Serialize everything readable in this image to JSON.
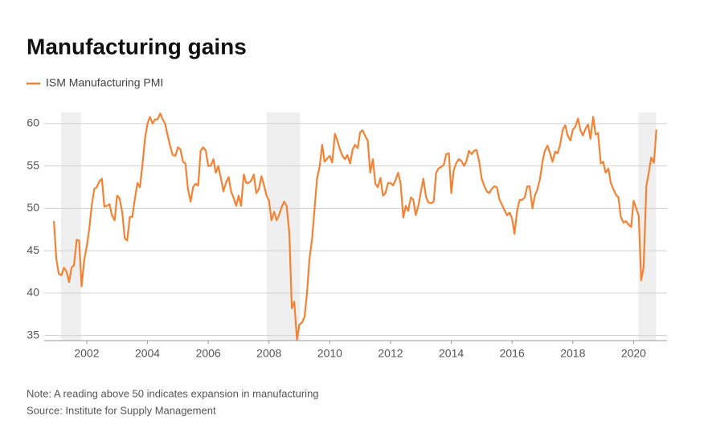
{
  "chart_data": {
    "type": "line",
    "title": "Manufacturing gains",
    "notes": [
      "Note: A reading above 50 indicates expansion in manufacturing",
      "Source: Institute for Supply Management"
    ],
    "series": [
      {
        "name": "ISM Manufacturing PMI",
        "color": "#f58233",
        "x": [
          2000.92,
          2001.0,
          2001.08,
          2001.17,
          2001.25,
          2001.33,
          2001.42,
          2001.5,
          2001.58,
          2001.67,
          2001.75,
          2001.83,
          2001.92,
          2002.0,
          2002.08,
          2002.17,
          2002.25,
          2002.33,
          2002.42,
          2002.5,
          2002.58,
          2002.67,
          2002.75,
          2002.83,
          2002.92,
          2003.0,
          2003.08,
          2003.17,
          2003.25,
          2003.33,
          2003.42,
          2003.5,
          2003.58,
          2003.67,
          2003.75,
          2003.83,
          2003.92,
          2004.0,
          2004.08,
          2004.17,
          2004.25,
          2004.33,
          2004.42,
          2004.5,
          2004.58,
          2004.67,
          2004.75,
          2004.83,
          2004.92,
          2005.0,
          2005.08,
          2005.17,
          2005.25,
          2005.33,
          2005.42,
          2005.5,
          2005.58,
          2005.67,
          2005.75,
          2005.83,
          2005.92,
          2006.0,
          2006.08,
          2006.17,
          2006.25,
          2006.33,
          2006.42,
          2006.5,
          2006.58,
          2006.67,
          2006.75,
          2006.83,
          2006.92,
          2007.0,
          2007.08,
          2007.17,
          2007.25,
          2007.33,
          2007.42,
          2007.5,
          2007.58,
          2007.67,
          2007.75,
          2007.83,
          2007.92,
          2008.0,
          2008.08,
          2008.17,
          2008.25,
          2008.33,
          2008.42,
          2008.5,
          2008.58,
          2008.67,
          2008.75,
          2008.83,
          2008.92,
          2009.0,
          2009.08,
          2009.17,
          2009.25,
          2009.33,
          2009.42,
          2009.5,
          2009.58,
          2009.67,
          2009.75,
          2009.83,
          2009.92,
          2010.0,
          2010.08,
          2010.17,
          2010.25,
          2010.33,
          2010.42,
          2010.5,
          2010.58,
          2010.67,
          2010.75,
          2010.83,
          2010.92,
          2011.0,
          2011.08,
          2011.17,
          2011.25,
          2011.33,
          2011.42,
          2011.5,
          2011.58,
          2011.67,
          2011.75,
          2011.83,
          2011.92,
          2012.0,
          2012.08,
          2012.17,
          2012.25,
          2012.33,
          2012.42,
          2012.5,
          2012.58,
          2012.67,
          2012.75,
          2012.83,
          2012.92,
          2013.0,
          2013.08,
          2013.17,
          2013.25,
          2013.33,
          2013.42,
          2013.5,
          2013.58,
          2013.67,
          2013.75,
          2013.83,
          2013.92,
          2014.0,
          2014.08,
          2014.17,
          2014.25,
          2014.33,
          2014.42,
          2014.5,
          2014.58,
          2014.67,
          2014.75,
          2014.83,
          2014.92,
          2015.0,
          2015.08,
          2015.17,
          2015.25,
          2015.33,
          2015.42,
          2015.5,
          2015.58,
          2015.67,
          2015.75,
          2015.83,
          2015.92,
          2016.0,
          2016.08,
          2016.17,
          2016.25,
          2016.33,
          2016.42,
          2016.5,
          2016.58,
          2016.67,
          2016.75,
          2016.83,
          2016.92,
          2017.0,
          2017.08,
          2017.17,
          2017.25,
          2017.33,
          2017.42,
          2017.5,
          2017.58,
          2017.67,
          2017.75,
          2017.83,
          2017.92,
          2018.0,
          2018.08,
          2018.17,
          2018.25,
          2018.33,
          2018.42,
          2018.5,
          2018.58,
          2018.67,
          2018.75,
          2018.83,
          2018.92,
          2019.0,
          2019.08,
          2019.17,
          2019.25,
          2019.33,
          2019.42,
          2019.5,
          2019.58,
          2019.67,
          2019.75,
          2019.83,
          2019.92,
          2020.0,
          2020.08,
          2020.17,
          2020.25,
          2020.33,
          2020.42,
          2020.5,
          2020.58,
          2020.67,
          2020.75
        ],
        "values": [
          48.5,
          44,
          42.3,
          42.1,
          43,
          42.6,
          41.3,
          43,
          43.3,
          46.3,
          46.2,
          40.8,
          44,
          45.5,
          47.5,
          50.5,
          52.3,
          52.5,
          53.2,
          53.5,
          50.2,
          50.3,
          50.5,
          49.2,
          48.6,
          51.5,
          51.2,
          49.5,
          46.5,
          46.2,
          49,
          49,
          51,
          53,
          52.5,
          55,
          58.3,
          60,
          60.8,
          60,
          60.5,
          60.5,
          61.2,
          60.5,
          60,
          58.5,
          57.3,
          56.3,
          56.2,
          57.2,
          57,
          55.5,
          55.3,
          52.3,
          50.8,
          52.5,
          52.9,
          52.7,
          56.8,
          57.2,
          56.8,
          55,
          55,
          55.8,
          54.2,
          55,
          53.5,
          52,
          53,
          53.7,
          52,
          51.3,
          50.3,
          51.5,
          50.3,
          54,
          53,
          53,
          53.3,
          54,
          51.8,
          52.3,
          53.8,
          52.8,
          51.5,
          50.9,
          48.6,
          49.6,
          48.6,
          49.2,
          50.2,
          50.8,
          50.3,
          47,
          38.2,
          39,
          34.5,
          36.3,
          36.5,
          37.2,
          40,
          44,
          46.5,
          50,
          53.5,
          55,
          57.5,
          55.5,
          55.9,
          56.2,
          55.4,
          58.8,
          58,
          57,
          56.2,
          55.8,
          56.3,
          55.3,
          56.9,
          57.5,
          57.1,
          59,
          59.2,
          58.5,
          58,
          54.2,
          55.8,
          52.9,
          52.5,
          53.6,
          51.5,
          51.8,
          53,
          53,
          52.7,
          53.4,
          54.2,
          53,
          48.9,
          50.3,
          49.7,
          51.3,
          51,
          49.2,
          50.4,
          52,
          53.5,
          51.3,
          50.7,
          50.6,
          50.8,
          54.2,
          54.7,
          54.9,
          55.1,
          56.4,
          56.5,
          51.8,
          54.5,
          55.4,
          55.8,
          55.6,
          55,
          55.6,
          56.8,
          56.4,
          56.8,
          56.9,
          55.5,
          53.5,
          52.7,
          52,
          51.8,
          52.3,
          52.6,
          52.5,
          51.1,
          50.4,
          49.8,
          49.2,
          49.5,
          48.8,
          47,
          49.8,
          51,
          51,
          51.3,
          52.6,
          52.6,
          50,
          51.5,
          52.2,
          53.5,
          55.5,
          56.8,
          57.4,
          56.5,
          55.5,
          56.7,
          56.5,
          57.5,
          59.3,
          59.8,
          58.6,
          58,
          59.3,
          59.6,
          60.6,
          59.2,
          58.6,
          59.4,
          59.9,
          58.2,
          60.8,
          58.7,
          58.9,
          55.3,
          55.5,
          54.2,
          54.7,
          53,
          52.3,
          51.6,
          51.3,
          49,
          48.3,
          48.5,
          48.1,
          47.8,
          50.9,
          50.1,
          49.1,
          41.5,
          43.1,
          52.6,
          54.2,
          56,
          55.4,
          59.3
        ]
      }
    ],
    "recessions": [
      [
        2001.15,
        2001.81
      ],
      [
        2007.93,
        2009.02
      ],
      [
        2020.16,
        2020.74
      ]
    ],
    "xlim": [
      2000.6,
      2021.1
    ],
    "xticks": [
      2002,
      2004,
      2006,
      2008,
      2010,
      2012,
      2014,
      2016,
      2018,
      2020
    ],
    "ylim": [
      34.4,
      61.6
    ],
    "yticks": [
      35,
      40,
      45,
      50,
      55,
      60
    ],
    "grid": true
  }
}
